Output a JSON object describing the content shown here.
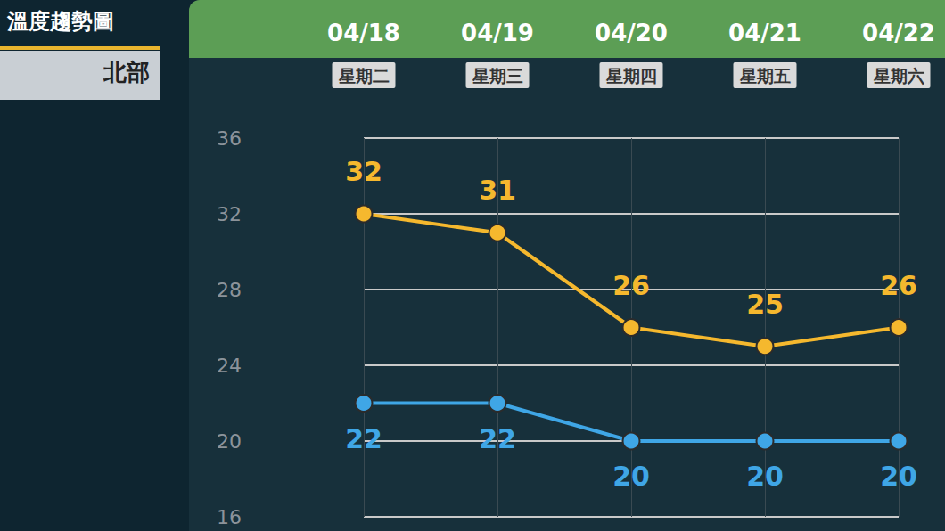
{
  "chart_data": {
    "type": "line",
    "title": "溫度趨勢圖",
    "subtitle": "北部",
    "categories": [
      "04/18",
      "04/19",
      "04/20",
      "04/21",
      "04/22"
    ],
    "weekdays": [
      "星期二",
      "星期三",
      "星期四",
      "星期五",
      "星期六"
    ],
    "series": [
      {
        "color": "#f5b82e",
        "values": [
          32,
          31,
          26,
          25,
          26
        ]
      },
      {
        "color": "#3fa6e6",
        "values": [
          22,
          22,
          20,
          20,
          20
        ]
      }
    ],
    "ylim": [
      16,
      36
    ],
    "yticks": [
      16,
      20,
      24,
      28,
      32,
      36
    ],
    "grid": true,
    "data_labels": true,
    "marker": "circle"
  }
}
